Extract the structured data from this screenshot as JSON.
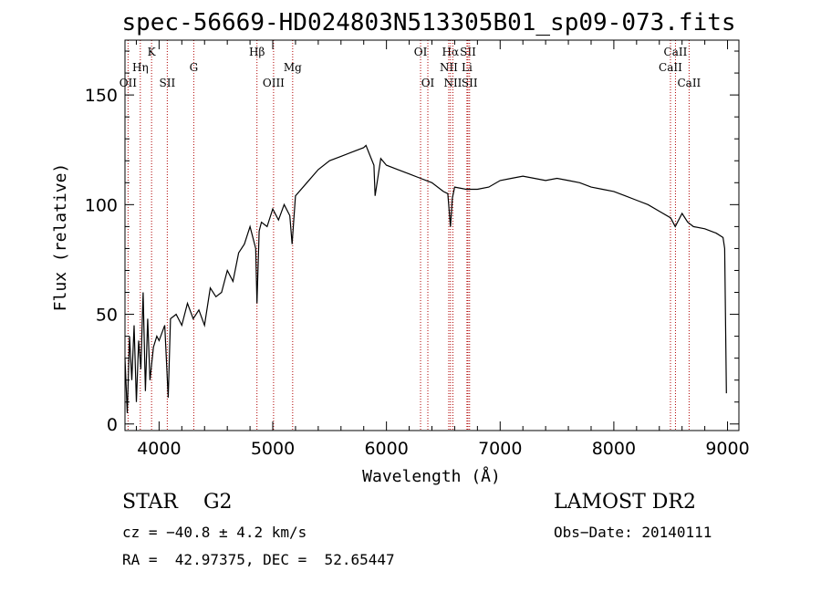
{
  "chart_data": {
    "type": "line",
    "title": "spec-56669-HD024803N513305B01_sp09-073.fits",
    "xlabel": "Wavelength (Å)",
    "ylabel": "Flux (relative)",
    "xlim": [
      3700,
      9100
    ],
    "ylim": [
      -3,
      175
    ],
    "xticks": [
      4000,
      5000,
      6000,
      7000,
      8000,
      9000
    ],
    "yticks": [
      0,
      50,
      100,
      150
    ],
    "series": [
      {
        "x": [
          3700,
          3720,
          3740,
          3760,
          3780,
          3800,
          3820,
          3840,
          3860,
          3880,
          3900,
          3920,
          3950,
          3980,
          4000,
          4050,
          4080,
          4100,
          4150,
          4200,
          4250,
          4300,
          4350,
          4400,
          4450,
          4500,
          4550,
          4600,
          4650,
          4700,
          4750,
          4800,
          4850,
          4861,
          4880,
          4900,
          4950,
          5000,
          5050,
          5100,
          5150,
          5170,
          5200,
          5300,
          5400,
          5500,
          5600,
          5700,
          5800,
          5820,
          5850,
          5890,
          5900,
          5950,
          6000,
          6100,
          6200,
          6300,
          6400,
          6500,
          6540,
          6563,
          6580,
          6600,
          6700,
          6800,
          6900,
          7000,
          7100,
          7200,
          7300,
          7400,
          7500,
          7600,
          7700,
          7800,
          7900,
          8000,
          8100,
          8200,
          8300,
          8400,
          8500,
          8540,
          8600,
          8650,
          8700,
          8800,
          8900,
          8960,
          8975,
          8990
        ],
        "y": [
          30,
          5,
          40,
          20,
          45,
          10,
          38,
          25,
          60,
          15,
          48,
          20,
          35,
          40,
          38,
          45,
          12,
          48,
          50,
          45,
          55,
          48,
          52,
          45,
          62,
          58,
          60,
          70,
          65,
          78,
          82,
          90,
          80,
          55,
          88,
          92,
          90,
          98,
          93,
          100,
          95,
          82,
          104,
          110,
          116,
          120,
          122,
          124,
          126,
          127,
          123,
          118,
          104,
          121,
          118,
          116,
          114,
          112,
          110,
          106,
          105,
          90,
          103,
          108,
          107,
          107,
          108,
          111,
          112,
          113,
          112,
          111,
          112,
          111,
          110,
          108,
          107,
          106,
          104,
          102,
          100,
          97,
          94,
          90,
          96,
          92,
          90,
          89,
          87,
          85,
          80,
          14
        ]
      }
    ]
  },
  "spectral_lines": [
    {
      "label": "OII",
      "x": 3727,
      "row": 3
    },
    {
      "label": "Hη",
      "x": 3835,
      "row": 2
    },
    {
      "label": "K",
      "x": 3934,
      "row": 1
    },
    {
      "label": "SII",
      "x": 4072,
      "row": 3
    },
    {
      "label": "G",
      "x": 4305,
      "row": 2
    },
    {
      "label": "Hβ",
      "x": 4861,
      "row": 1
    },
    {
      "label": "OIII",
      "x": 5007,
      "row": 3
    },
    {
      "label": "Mg",
      "x": 5175,
      "row": 2
    },
    {
      "label": "OI",
      "x": 6300,
      "row": 1
    },
    {
      "label": "OI",
      "x": 6364,
      "row": 3
    },
    {
      "label": "Hα",
      "x": 6563,
      "row": 1
    },
    {
      "label": "NII",
      "x": 6548,
      "row": 2
    },
    {
      "label": "NII",
      "x": 6584,
      "row": 3
    },
    {
      "label": "SII",
      "x": 6717,
      "row": 1
    },
    {
      "label": "Li",
      "x": 6708,
      "row": 2
    },
    {
      "label": "SII",
      "x": 6731,
      "row": 3
    },
    {
      "label": "CaII",
      "x": 8542,
      "row": 1
    },
    {
      "label": "CaII",
      "x": 8498,
      "row": 2
    },
    {
      "label": "CaII",
      "x": 8662,
      "row": 3
    }
  ],
  "info": {
    "class_line": "STAR    G2",
    "survey": "LAMOST DR2",
    "cz": "cz = −40.8 ± 4.2 km/s",
    "obs_date": "Obs−Date: 20140111",
    "radec": "RA =  42.97375, DEC =  52.65447"
  },
  "colors": {
    "spectrum": "#000000",
    "line_marker": "#b00000"
  }
}
